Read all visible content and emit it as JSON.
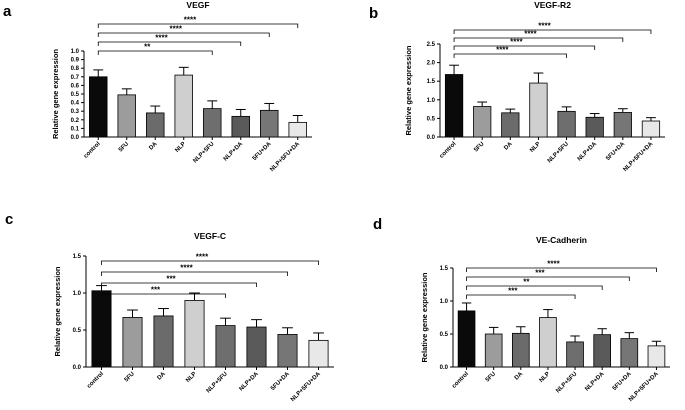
{
  "chart_data": [
    {
      "type": "bar",
      "panel": "a",
      "title": "VEGF",
      "xlabel": "",
      "ylabel": "Relative gene expression",
      "ylim": [
        0,
        1.0
      ],
      "yticks": [
        "0.0",
        "0.1",
        "0.2",
        "0.3",
        "0.4",
        "0.5",
        "0.6",
        "0.7",
        "0.8",
        "0.9",
        "1.0"
      ],
      "categories": [
        "control",
        "5FU",
        "DA",
        "NLP",
        "NLP+5FU",
        "NLP+DA",
        "5FU+DA",
        "NLP+5FU+DA"
      ],
      "values": [
        0.7,
        0.49,
        0.28,
        0.72,
        0.33,
        0.24,
        0.31,
        0.17
      ],
      "errors": [
        0.08,
        0.07,
        0.08,
        0.09,
        0.09,
        0.08,
        0.08,
        0.08
      ],
      "colors": [
        "#0a0a0a",
        "#9c9c9c",
        "#6b6b6b",
        "#cfcfcf",
        "#6e6e6e",
        "#5a5a5a",
        "#767676",
        "#e8e8e8"
      ],
      "comparisons": [
        {
          "from": 0,
          "to": 4,
          "label": "**"
        },
        {
          "from": 0,
          "to": 5,
          "label": "****"
        },
        {
          "from": 0,
          "to": 6,
          "label": "****"
        },
        {
          "from": 0,
          "to": 7,
          "label": "****"
        }
      ]
    },
    {
      "type": "bar",
      "panel": "b",
      "title": "VEGF-R2",
      "xlabel": "",
      "ylabel": "Relative gene expression",
      "ylim": [
        0,
        2.5
      ],
      "yticks": [
        "0.0",
        "0.5",
        "1.0",
        "1.5",
        "2.0",
        "2.5"
      ],
      "categories": [
        "control",
        "5FU",
        "DA",
        "NLP",
        "NLP+5FU",
        "NLP+DA",
        "5FU+DA",
        "NLP+5FU+DA"
      ],
      "values": [
        1.68,
        0.82,
        0.65,
        1.45,
        0.69,
        0.53,
        0.66,
        0.43
      ],
      "errors": [
        0.25,
        0.12,
        0.1,
        0.27,
        0.12,
        0.1,
        0.1,
        0.09
      ],
      "colors": [
        "#0a0a0a",
        "#9c9c9c",
        "#6b6b6b",
        "#cfcfcf",
        "#6e6e6e",
        "#5a5a5a",
        "#767676",
        "#e8e8e8"
      ],
      "comparisons": [
        {
          "from": 0,
          "to": 4,
          "label": "****"
        },
        {
          "from": 0,
          "to": 5,
          "label": "****"
        },
        {
          "from": 0,
          "to": 6,
          "label": "****"
        },
        {
          "from": 0,
          "to": 7,
          "label": "****"
        }
      ]
    },
    {
      "type": "bar",
      "panel": "c",
      "title": "VEGF-C",
      "xlabel": "",
      "ylabel": "Relative gene expression",
      "ylim": [
        0,
        1.5
      ],
      "yticks": [
        "0.0",
        "0.5",
        "1.0",
        "1.5"
      ],
      "categories": [
        "control",
        "5FU",
        "DA",
        "NLP",
        "NLP+5FU",
        "NLP+DA",
        "5FU+DA",
        "NLP+5FU+DA"
      ],
      "values": [
        1.03,
        0.67,
        0.69,
        0.9,
        0.56,
        0.54,
        0.44,
        0.36
      ],
      "errors": [
        0.07,
        0.1,
        0.1,
        0.1,
        0.1,
        0.1,
        0.09,
        0.1
      ],
      "colors": [
        "#0a0a0a",
        "#9c9c9c",
        "#6b6b6b",
        "#cfcfcf",
        "#6e6e6e",
        "#5a5a5a",
        "#767676",
        "#e8e8e8"
      ],
      "comparisons": [
        {
          "from": 0,
          "to": 4,
          "label": "***"
        },
        {
          "from": 0,
          "to": 5,
          "label": "***"
        },
        {
          "from": 0,
          "to": 6,
          "label": "****"
        },
        {
          "from": 0,
          "to": 7,
          "label": "****"
        }
      ]
    },
    {
      "type": "bar",
      "panel": "d",
      "title": "VE-Cadherin",
      "xlabel": "",
      "ylabel": "Relative gene expression",
      "ylim": [
        0,
        1.5
      ],
      "yticks": [
        "0.0",
        "0.5",
        "1.0",
        "1.5"
      ],
      "categories": [
        "control",
        "5FU",
        "DA",
        "NLP",
        "NLP+5FU",
        "NLP+DA",
        "5FU+DA",
        "NLP+5FU+DA"
      ],
      "values": [
        0.85,
        0.5,
        0.51,
        0.75,
        0.38,
        0.49,
        0.43,
        0.32
      ],
      "errors": [
        0.12,
        0.1,
        0.1,
        0.12,
        0.09,
        0.09,
        0.09,
        0.07
      ],
      "colors": [
        "#0a0a0a",
        "#9c9c9c",
        "#6b6b6b",
        "#cfcfcf",
        "#6e6e6e",
        "#5a5a5a",
        "#767676",
        "#e8e8e8"
      ],
      "comparisons": [
        {
          "from": 0,
          "to": 4,
          "label": "***"
        },
        {
          "from": 0,
          "to": 5,
          "label": "**"
        },
        {
          "from": 0,
          "to": 6,
          "label": "***"
        },
        {
          "from": 0,
          "to": 7,
          "label": "****"
        }
      ]
    }
  ]
}
